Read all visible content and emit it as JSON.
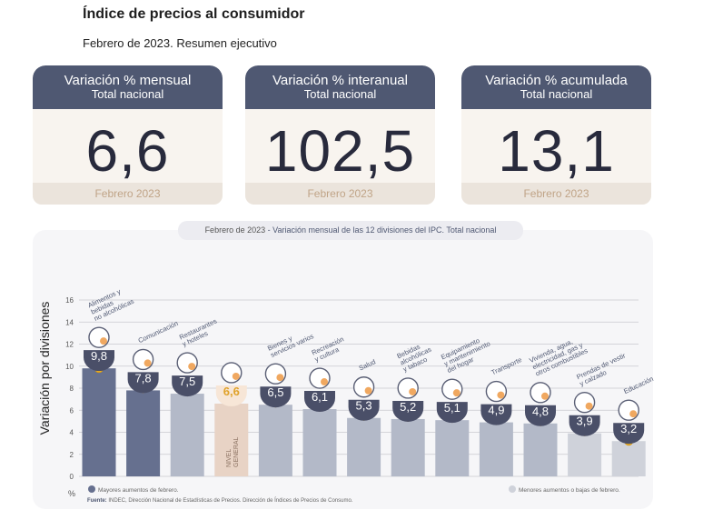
{
  "header": {
    "title": "Índice de precios al consumidor",
    "subtitle": "Febrero de 2023. Resumen ejecutivo"
  },
  "cards": [
    {
      "title": "Variación % mensual",
      "sub": "Total nacional",
      "value": "6,6",
      "footer": "Febrero 2023"
    },
    {
      "title": "Variación % interanual",
      "sub": "Total nacional",
      "value": "102,5",
      "footer": "Febrero 2023"
    },
    {
      "title": "Variación % acumulada",
      "sub": "Total nacional",
      "value": "13,1",
      "footer": "Febrero 2023"
    }
  ],
  "colors": {
    "card_header": "#4f5872",
    "bar_high": "#66708f",
    "bar_mid": "#b3b9c8",
    "bar_low": "#cfd2da",
    "bar_general": "#e8d3c5",
    "badge": "#4a4f68",
    "badge_general": "#f7e6d7",
    "dot": "#f0b429"
  },
  "chart_data": {
    "type": "bar",
    "title": "Febrero de 2023 - Variación mensual de las 12 divisiones del IPC. Total nacional",
    "title_prefix": "Febrero de 2023",
    "title_rest": " - Variación mensual de las 12 divisiones del IPC. Total nacional",
    "ylabel": "Variación por divisiones",
    "yunit": "%",
    "ylim": [
      0,
      16
    ],
    "yticks": [
      "0",
      "2",
      "4",
      "6",
      "8",
      "10",
      "12",
      "14",
      "16"
    ],
    "grid": true,
    "categories": [
      "Alimentos y bebidas no alcohólicas",
      "Comunicación",
      "Restaurantes y hoteles",
      "NIVEL GENERAL",
      "Bienes y servicios varios",
      "Recreación y cultura",
      "Salud",
      "Bebidas alcohólicas y tabaco",
      "Equipamiento y mantenimiento del hogar",
      "Transporte",
      "Vivienda, agua, electricidad, gas y otros combustibles",
      "Prendas de vestir y calzado",
      "Educación"
    ],
    "values": [
      9.8,
      7.8,
      7.5,
      6.6,
      6.5,
      6.1,
      5.3,
      5.2,
      5.1,
      4.9,
      4.8,
      3.9,
      3.2
    ],
    "value_labels": [
      "9,8",
      "7,8",
      "7,5",
      "6,6",
      "6,5",
      "6,1",
      "5,3",
      "5,2",
      "5,1",
      "4,9",
      "4,8",
      "3,9",
      "3,2"
    ],
    "category_labels": [
      [
        "Alimentos y",
        "bebidas",
        "no alcohólicas"
      ],
      [
        "Comunicación"
      ],
      [
        "Restaurantes",
        "y hoteles"
      ],
      [],
      [
        "Bienes y",
        "servicios varios"
      ],
      [
        "Recreación",
        "y cultura"
      ],
      [
        "Salud"
      ],
      [
        "Bebidas",
        "alcohólicas",
        "y tabaco"
      ],
      [
        "Equipamiento",
        "y mantenimiento",
        "del hogar"
      ],
      [
        "Transporte"
      ],
      [
        "Vivienda, agua,",
        "electricidad, gas y",
        "otros combustibles"
      ],
      [
        "Prendas de vestir",
        "y calzado"
      ],
      [
        "Educación"
      ]
    ],
    "groups": [
      "high",
      "high",
      "mid",
      "general",
      "mid",
      "mid",
      "mid",
      "mid",
      "mid",
      "mid",
      "mid",
      "low",
      "low"
    ],
    "general_bar_label": [
      "NIVEL",
      "GENERAL"
    ],
    "legend": {
      "high": "Mayores aumentos de febrero.",
      "low": "Menores aumentos o bajas de febrero."
    },
    "source_bold": "Fuente:",
    "source_text": " INDEC, Dirección Nacional de Estadísticas de Precios. Dirección de Índices de Precios de Consumo."
  }
}
